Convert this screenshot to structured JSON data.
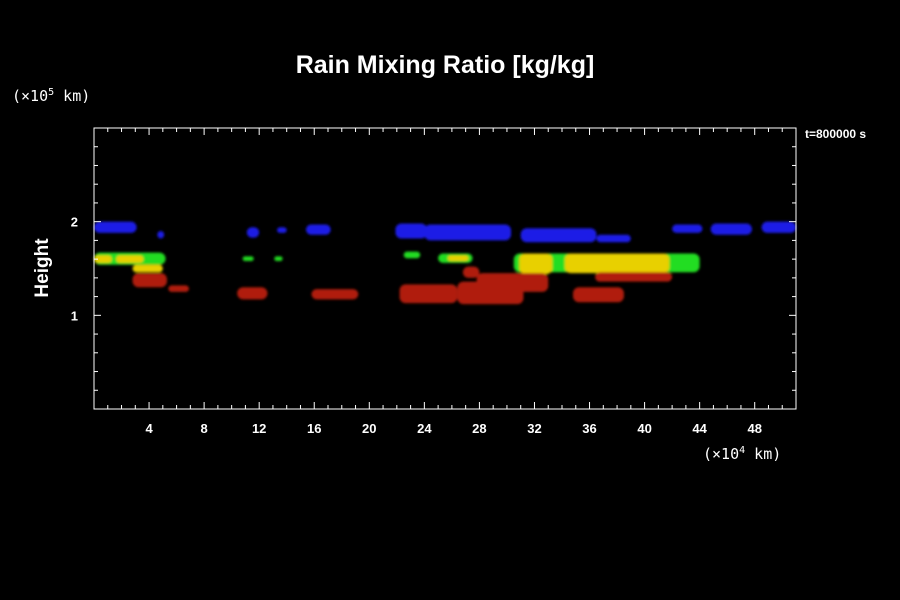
{
  "chart_data": {
    "type": "heatmap",
    "title": "Rain Mixing Ratio [kg/kg]",
    "xlabel": "",
    "ylabel": "Height",
    "x_unit": {
      "prefix": "(×10",
      "exp": "4",
      "suffix": " km)"
    },
    "y_unit": {
      "prefix": "(×10",
      "exp": "5",
      "suffix": " km)"
    },
    "time_label": "t=800000 s",
    "xlim": [
      0,
      51
    ],
    "ylim": [
      0,
      3
    ],
    "x_ticks": [
      4,
      8,
      12,
      16,
      20,
      24,
      28,
      32,
      36,
      40,
      44,
      48
    ],
    "x_tick_labels": [
      "4",
      "8",
      "12",
      "16",
      "20",
      "24",
      "28",
      "32",
      "36",
      "40",
      "44",
      "48"
    ],
    "y_ticks": [
      1,
      2
    ],
    "y_tick_labels": [
      "1",
      "2"
    ],
    "x_minor_step": 1,
    "y_minor_step": 0.2,
    "colors": {
      "blue": "#1a1ae6",
      "green": "#22dd22",
      "yellow": "#e8d000",
      "red": "#b01a0a"
    },
    "regions": [
      {
        "level": "blue",
        "x": [
          0,
          3.1
        ],
        "y": [
          1.88,
          2.0
        ]
      },
      {
        "level": "blue",
        "x": [
          4.6,
          5.1
        ],
        "y": [
          1.82,
          1.9
        ]
      },
      {
        "level": "blue",
        "x": [
          11.1,
          12.0
        ],
        "y": [
          1.83,
          1.94
        ]
      },
      {
        "level": "blue",
        "x": [
          13.3,
          14.0
        ],
        "y": [
          1.88,
          1.94
        ]
      },
      {
        "level": "blue",
        "x": [
          15.4,
          17.2
        ],
        "y": [
          1.86,
          1.97
        ]
      },
      {
        "level": "blue",
        "x": [
          21.9,
          24.2
        ],
        "y": [
          1.82,
          1.98
        ]
      },
      {
        "level": "blue",
        "x": [
          24.0,
          30.3
        ],
        "y": [
          1.8,
          1.97
        ]
      },
      {
        "level": "blue",
        "x": [
          31.0,
          36.5
        ],
        "y": [
          1.78,
          1.93
        ]
      },
      {
        "level": "blue",
        "x": [
          36.5,
          39.0
        ],
        "y": [
          1.78,
          1.86
        ]
      },
      {
        "level": "blue",
        "x": [
          42.0,
          44.2
        ],
        "y": [
          1.88,
          1.97
        ]
      },
      {
        "level": "blue",
        "x": [
          44.8,
          47.8
        ],
        "y": [
          1.86,
          1.98
        ]
      },
      {
        "level": "blue",
        "x": [
          48.5,
          51.0
        ],
        "y": [
          1.88,
          2.0
        ]
      },
      {
        "level": "green",
        "x": [
          0,
          5.2
        ],
        "y": [
          1.54,
          1.67
        ]
      },
      {
        "level": "green",
        "x": [
          10.8,
          11.6
        ],
        "y": [
          1.58,
          1.63
        ]
      },
      {
        "level": "green",
        "x": [
          13.1,
          13.7
        ],
        "y": [
          1.58,
          1.63
        ]
      },
      {
        "level": "green",
        "x": [
          22.5,
          23.7
        ],
        "y": [
          1.61,
          1.68
        ]
      },
      {
        "level": "green",
        "x": [
          25.0,
          27.5
        ],
        "y": [
          1.56,
          1.66
        ]
      },
      {
        "level": "green",
        "x": [
          30.5,
          44.0
        ],
        "y": [
          1.46,
          1.66
        ]
      },
      {
        "level": "yellow",
        "x": [
          0,
          1.3
        ],
        "y": [
          1.56,
          1.64
        ]
      },
      {
        "level": "yellow",
        "x": [
          1.6,
          3.6
        ],
        "y": [
          1.56,
          1.64
        ]
      },
      {
        "level": "yellow",
        "x": [
          2.8,
          5.0
        ],
        "y": [
          1.46,
          1.54
        ]
      },
      {
        "level": "yellow",
        "x": [
          25.7,
          27.2
        ],
        "y": [
          1.58,
          1.64
        ]
      },
      {
        "level": "yellow",
        "x": [
          30.9,
          33.3
        ],
        "y": [
          1.44,
          1.66
        ]
      },
      {
        "level": "yellow",
        "x": [
          34.2,
          41.8
        ],
        "y": [
          1.45,
          1.66
        ]
      },
      {
        "level": "red",
        "x": [
          2.8,
          5.3
        ],
        "y": [
          1.3,
          1.45
        ]
      },
      {
        "level": "red",
        "x": [
          5.4,
          6.9
        ],
        "y": [
          1.25,
          1.32
        ]
      },
      {
        "level": "red",
        "x": [
          10.4,
          12.6
        ],
        "y": [
          1.17,
          1.3
        ]
      },
      {
        "level": "red",
        "x": [
          15.8,
          19.2
        ],
        "y": [
          1.17,
          1.28
        ]
      },
      {
        "level": "red",
        "x": [
          22.2,
          26.4
        ],
        "y": [
          1.13,
          1.33
        ]
      },
      {
        "level": "red",
        "x": [
          26.4,
          31.2
        ],
        "y": [
          1.12,
          1.36
        ]
      },
      {
        "level": "red",
        "x": [
          27.8,
          33.0
        ],
        "y": [
          1.25,
          1.45
        ]
      },
      {
        "level": "red",
        "x": [
          26.8,
          28.0
        ],
        "y": [
          1.4,
          1.52
        ]
      },
      {
        "level": "red",
        "x": [
          34.8,
          38.5
        ],
        "y": [
          1.14,
          1.3
        ]
      },
      {
        "level": "red",
        "x": [
          36.4,
          42.0
        ],
        "y": [
          1.36,
          1.46
        ]
      }
    ]
  }
}
